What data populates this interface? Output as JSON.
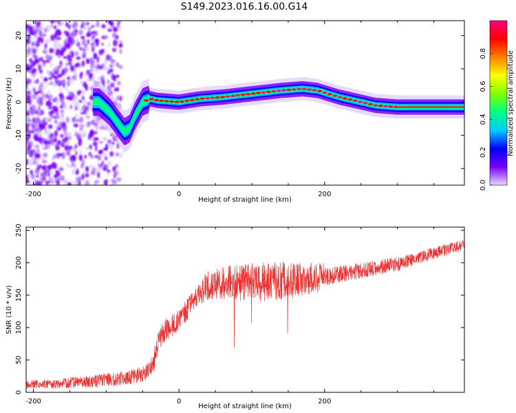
{
  "figure": {
    "title": "S149.2023.016.16.00.G14"
  },
  "chart_data": [
    {
      "type": "heatmap",
      "title": "S149.2023.016.16.00.G14",
      "xlabel": "Height of straight line (km)",
      "ylabel": "Frequency (Hz)",
      "xlim": [
        -210,
        392
      ],
      "ylim": [
        -25,
        24.5
      ],
      "x_ticks": [
        -200,
        0,
        200
      ],
      "y_ticks": [
        -20,
        -10,
        0,
        10,
        20
      ],
      "colorbar": {
        "label": "Normalized spectral amplitude",
        "range": [
          0,
          1
        ],
        "ticks": [
          0.0,
          0.2,
          0.4,
          0.6,
          0.8
        ],
        "colors": [
          "#e8d8ff",
          "#7a00ff",
          "#0000ff",
          "#00ccff",
          "#00ff80",
          "#80ff00",
          "#ffff00",
          "#ff8000",
          "#ff0000",
          "#ff0080"
        ]
      },
      "ridge": {
        "x": [
          -110,
          -95,
          -85,
          -75,
          -68,
          -60,
          -50,
          -40,
          -30,
          0,
          30,
          60,
          100,
          140,
          170,
          190,
          220,
          250,
          270,
          300,
          392
        ],
        "y": [
          0,
          -3,
          -6,
          -9,
          -8,
          -4,
          0,
          1,
          0.5,
          0,
          1,
          1.5,
          2.5,
          3.5,
          4,
          3.5,
          1.5,
          0,
          -1,
          -1.5,
          -1.5
        ]
      }
    },
    {
      "type": "line",
      "xlabel": "Height of straight line (km)",
      "ylabel": "SNR (10 * v/v)",
      "xlim": [
        -210,
        392
      ],
      "ylim": [
        0,
        255
      ],
      "x_ticks": [
        -200,
        0,
        200
      ],
      "y_ticks": [
        0,
        50,
        100,
        150,
        200,
        250
      ],
      "color": "#ef3030",
      "series": [
        {
          "x": [
            -210,
            -160,
            -110,
            -70,
            -45,
            -35,
            -30,
            -20,
            0,
            10,
            20,
            30,
            40,
            60,
            100,
            150,
            200,
            250,
            300,
            350,
            392
          ],
          "values": [
            12,
            14,
            18,
            22,
            30,
            45,
            75,
            95,
            110,
            125,
            145,
            158,
            165,
            168,
            170,
            172,
            178,
            188,
            198,
            215,
            228
          ]
        }
      ]
    }
  ]
}
